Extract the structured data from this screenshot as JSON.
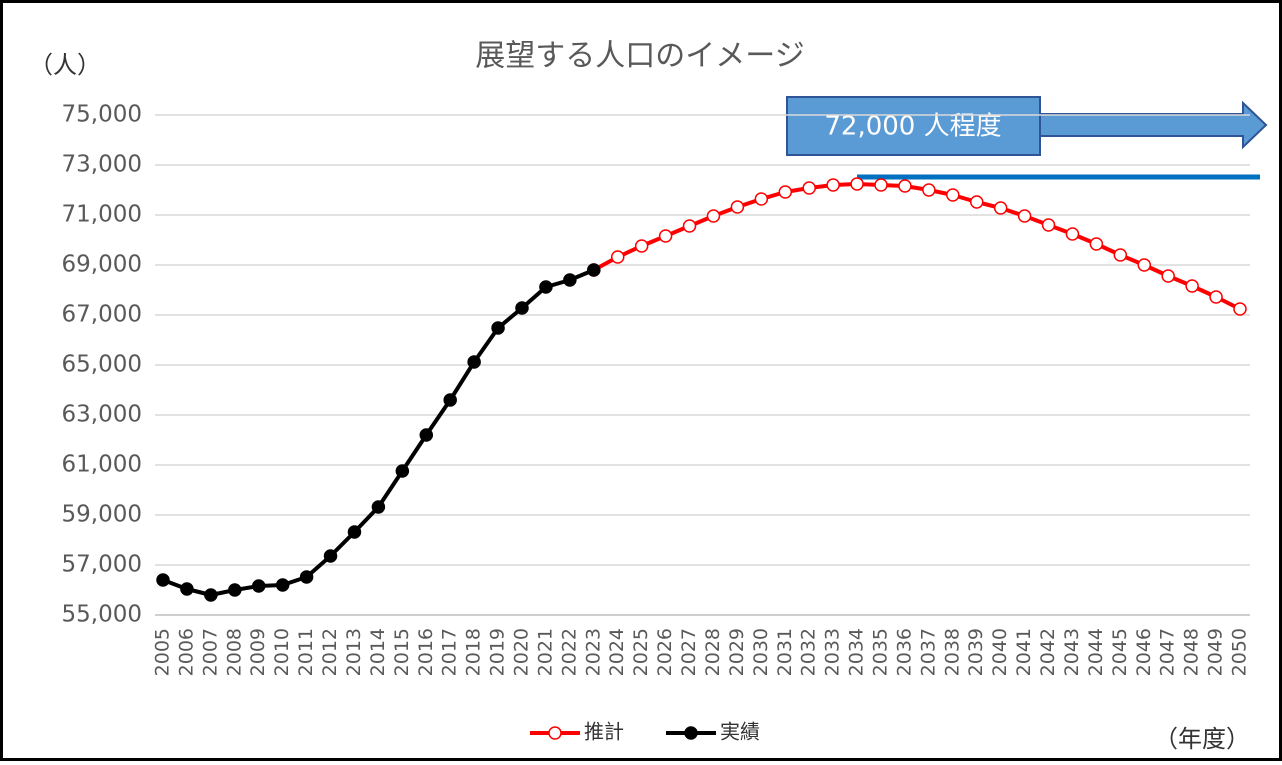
{
  "chart_data": {
    "type": "line",
    "title": "展望する人口のイメージ",
    "y_axis_label": "（人）",
    "x_axis_label": "（年度）",
    "annotation": "72,000 人程度",
    "x": [
      2005,
      2006,
      2007,
      2008,
      2009,
      2010,
      2011,
      2012,
      2013,
      2014,
      2015,
      2016,
      2017,
      2018,
      2019,
      2020,
      2021,
      2022,
      2023,
      2024,
      2025,
      2026,
      2027,
      2028,
      2029,
      2030,
      2031,
      2032,
      2033,
      2034,
      2035,
      2036,
      2037,
      2038,
      2039,
      2040,
      2041,
      2042,
      2043,
      2044,
      2045,
      2046,
      2047,
      2048,
      2049,
      2050
    ],
    "xlim": [
      2005,
      2050
    ],
    "ylim": [
      55000,
      75000
    ],
    "yticks": [
      {
        "value": 55000,
        "label": "55,000"
      },
      {
        "value": 57000,
        "label": "57,000"
      },
      {
        "value": 59000,
        "label": "59,000"
      },
      {
        "value": 61000,
        "label": "61,000"
      },
      {
        "value": 63000,
        "label": "63,000"
      },
      {
        "value": 65000,
        "label": "65,000"
      },
      {
        "value": 67000,
        "label": "67,000"
      },
      {
        "value": 69000,
        "label": "69,000"
      },
      {
        "value": 71000,
        "label": "71,000"
      },
      {
        "value": 73000,
        "label": "73,000"
      },
      {
        "value": 75000,
        "label": "75,000"
      }
    ],
    "grid": true,
    "legend": "bottom",
    "series": [
      {
        "name": "推計",
        "color": "#ff0000",
        "marker": "hollow",
        "values": [
          null,
          null,
          null,
          null,
          null,
          null,
          null,
          null,
          null,
          null,
          null,
          null,
          null,
          null,
          null,
          null,
          null,
          null,
          68800,
          69320,
          69760,
          70160,
          70560,
          70960,
          71320,
          71640,
          71920,
          72080,
          72200,
          72240,
          72200,
          72160,
          72000,
          71800,
          71520,
          71280,
          70960,
          70600,
          70240,
          69840,
          69400,
          69000,
          68560,
          68160,
          67720,
          67240
        ]
      },
      {
        "name": "実績",
        "color": "#000000",
        "marker": "filled",
        "values": [
          56400,
          56040,
          55800,
          56000,
          56160,
          56200,
          56520,
          57360,
          58320,
          59320,
          60760,
          62200,
          63600,
          65120,
          66480,
          67280,
          68120,
          68400,
          68800,
          null,
          null,
          null,
          null,
          null,
          null,
          null,
          null,
          null,
          null,
          null,
          null,
          null,
          null,
          null,
          null,
          null,
          null,
          null,
          null,
          null,
          null,
          null,
          null,
          null,
          null,
          null
        ]
      }
    ]
  }
}
